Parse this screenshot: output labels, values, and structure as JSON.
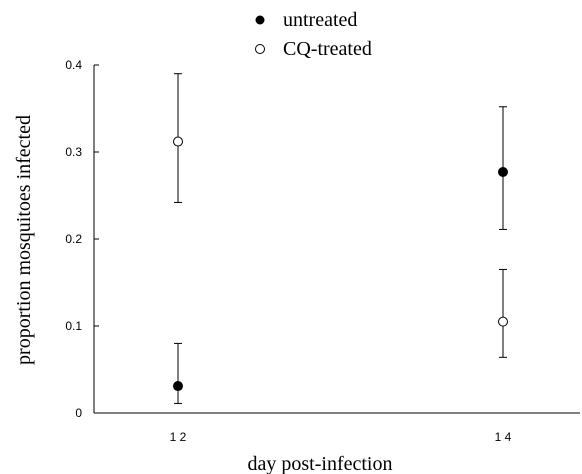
{
  "chart_data": {
    "type": "scatter",
    "xlabel": "day post-infection",
    "ylabel": "proportion mosquitoes infected",
    "categories": [
      "1 2",
      "1 4"
    ],
    "ylim": [
      0,
      0.4
    ],
    "yticks": [
      {
        "value": 0,
        "label": "0"
      },
      {
        "value": 0.1,
        "label": "0.1"
      },
      {
        "value": 0.2,
        "label": "0.2"
      },
      {
        "value": 0.3,
        "label": "0.3"
      },
      {
        "value": 0.4,
        "label": "0.4"
      }
    ],
    "grid": false,
    "legend_position": "top-center",
    "series": [
      {
        "name": "untreated",
        "marker": "filled-circle",
        "color": "#000000",
        "points": [
          {
            "category": "1 2",
            "y": 0.031,
            "err_low": 0.011,
            "err_high": 0.08
          },
          {
            "category": "1 4",
            "y": 0.277,
            "err_low": 0.211,
            "err_high": 0.352
          }
        ]
      },
      {
        "name": "CQ-treated",
        "marker": "open-circle",
        "color": "#000000",
        "points": [
          {
            "category": "1 2",
            "y": 0.312,
            "err_low": 0.242,
            "err_high": 0.39
          },
          {
            "category": "1 4",
            "y": 0.105,
            "err_low": 0.064,
            "err_high": 0.165
          }
        ]
      }
    ]
  }
}
